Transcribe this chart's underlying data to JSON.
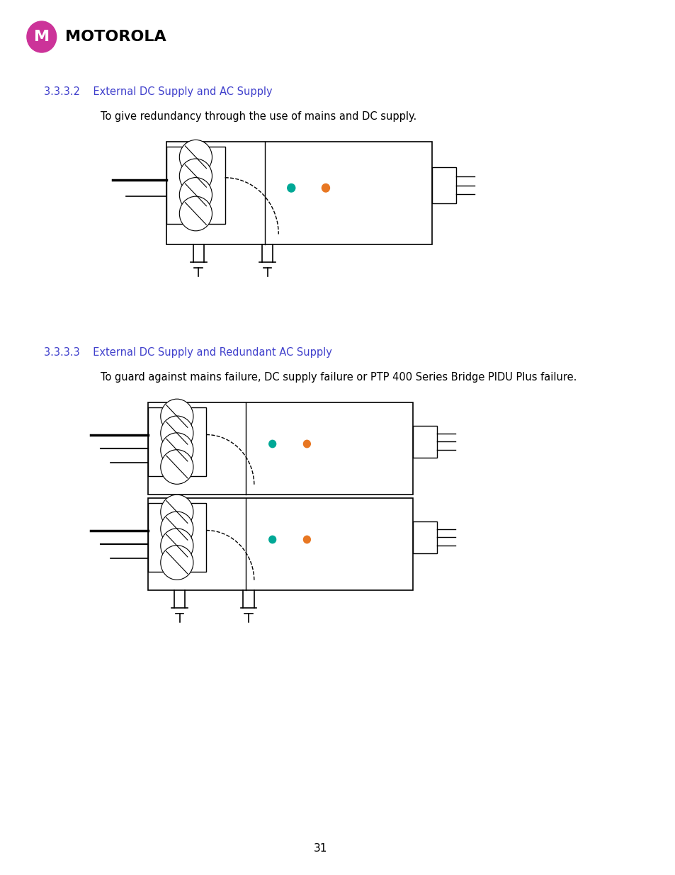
{
  "title": "",
  "page_number": "31",
  "section1_title": "3.3.3.2    External DC Supply and AC Supply",
  "section1_text": "To give redundancy through the use of mains and DC supply.",
  "section2_title": "3.3.3.3    External DC Supply and Redundant AC Supply",
  "section2_text": "To guard against mains failure, DC supply failure or PTP 400 Series Bridge PIDU Plus failure.",
  "section_title_color": "#4040cc",
  "background_color": "#ffffff",
  "teal_color": "#00a896",
  "orange_color": "#e87722",
  "logo_text": "MOTOROLA",
  "logo_circle_color": "#cc3399"
}
